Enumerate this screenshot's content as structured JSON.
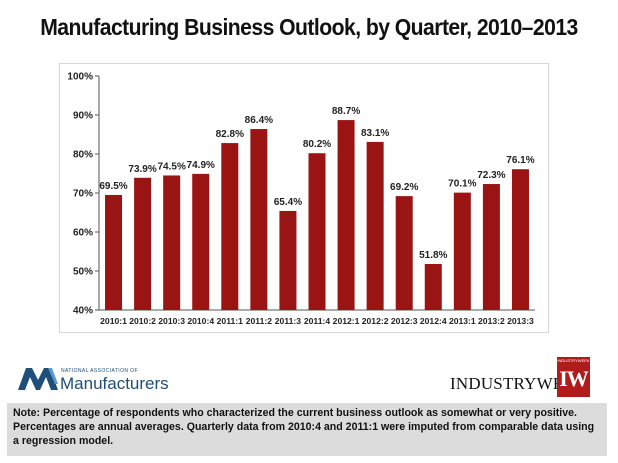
{
  "chart_data": {
    "type": "bar",
    "title": "Manufacturing Business Outlook, by Quarter, 2010–2013",
    "xlabel": "",
    "ylabel": "",
    "categories": [
      "2010:1",
      "2010:2",
      "2010:3",
      "2010:4",
      "2011:1",
      "2011:2",
      "2011:3",
      "2011:4",
      "2012:1",
      "2012:2",
      "2012:3",
      "2012:4",
      "2013:1",
      "2013:2",
      "2013:3"
    ],
    "values": [
      69.5,
      73.9,
      74.5,
      74.9,
      82.8,
      86.4,
      65.4,
      80.2,
      88.7,
      83.1,
      69.2,
      51.8,
      70.1,
      72.3,
      76.1
    ],
    "value_labels": [
      "69.5%",
      "73.9%",
      "74.5%",
      "74.9%",
      "82.8%",
      "86.4%",
      "65.4%",
      "80.2%",
      "88.7%",
      "83.1%",
      "69.2%",
      "51.8%",
      "70.1%",
      "72.3%",
      "76.1%"
    ],
    "ylim": [
      40,
      100
    ],
    "yticks": [
      40,
      50,
      60,
      70,
      80,
      90,
      100
    ],
    "ytick_labels": [
      "40%",
      "50%",
      "60%",
      "70%",
      "80%",
      "90%",
      "100%"
    ],
    "grid": false,
    "bar_color": "#9b1414"
  },
  "logos": {
    "nam_small": "NATIONAL ASSOCIATION OF",
    "nam_big": "Manufacturers",
    "iw_text": "INDUSTRYWEEK",
    "iw_badge_top": "INDUSTRYWEEK",
    "iw_badge_mono": "IW"
  },
  "note": "Note: Percentage of respondents who characterized the current business outlook as somewhat or very positive. Percentages are annual averages. Quarterly data from 2010:4 and 2011:1 were imputed from comparable data using a regression model."
}
